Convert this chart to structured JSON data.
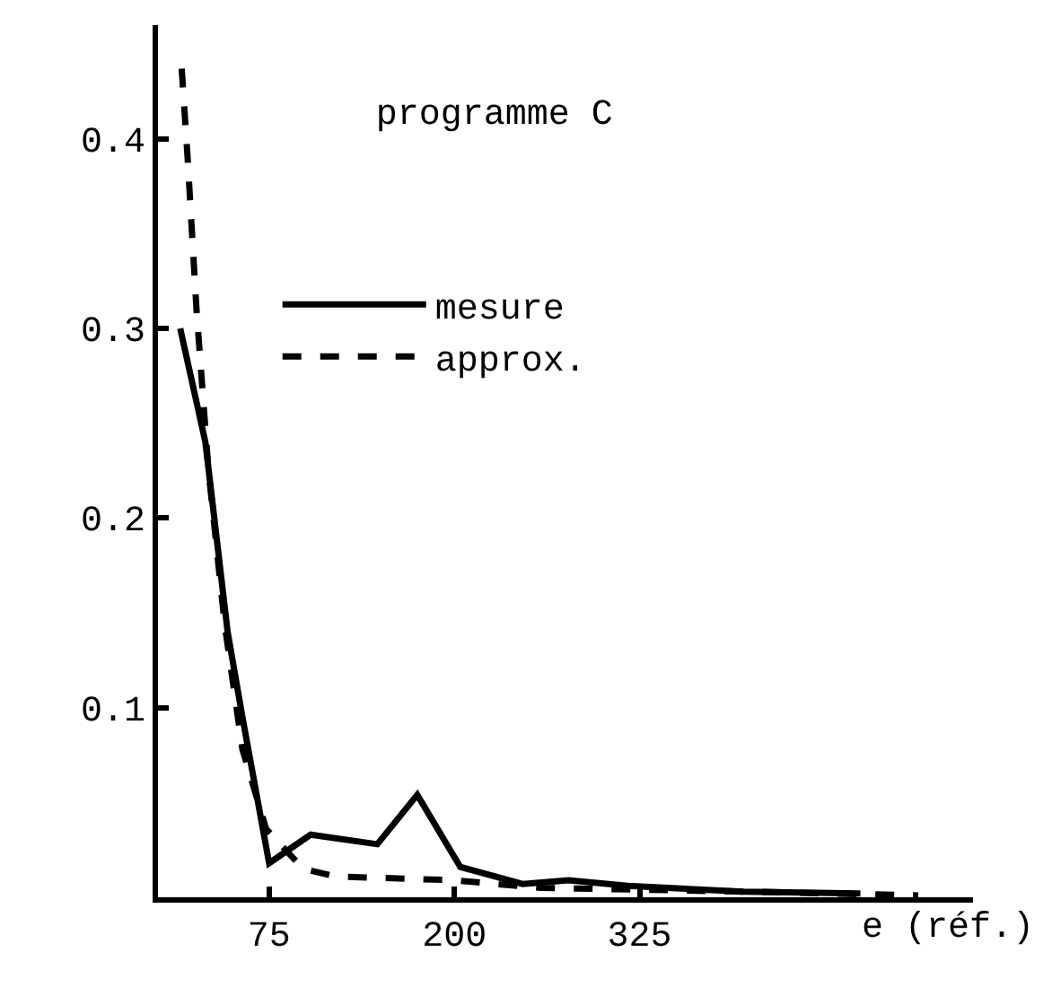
{
  "chart_data": {
    "type": "line",
    "title": "programme C",
    "xlabel": "e (réf.)",
    "xlim": [
      0,
      550
    ],
    "xticks": [
      75,
      200,
      325
    ],
    "ylim": [
      0,
      0.46
    ],
    "yticks": [
      0.1,
      0.2,
      0.3,
      0.4
    ],
    "legend": "top",
    "marker": "none",
    "series": [
      {
        "name": "mesure",
        "color": "#000000",
        "line_style": "solid",
        "x": [
          15,
          32,
          47,
          57,
          75,
          103,
          148,
          175,
          204,
          246,
          277,
          317,
          395,
          474
        ],
        "values": [
          0.3,
          0.24,
          0.14,
          0.095,
          0.018,
          0.033,
          0.028,
          0.054,
          0.016,
          0.007,
          0.009,
          0.006,
          0.003,
          0.002
        ]
      },
      {
        "name": "approx.",
        "color": "#000000",
        "line_style": "dashed",
        "x": [
          16,
          20,
          26,
          34,
          45,
          57,
          73,
          98,
          120,
          199,
          258,
          395,
          513
        ],
        "values": [
          0.437,
          0.39,
          0.31,
          0.226,
          0.144,
          0.078,
          0.036,
          0.015,
          0.011,
          0.009,
          0.005,
          0.003,
          0.001
        ]
      }
    ]
  }
}
